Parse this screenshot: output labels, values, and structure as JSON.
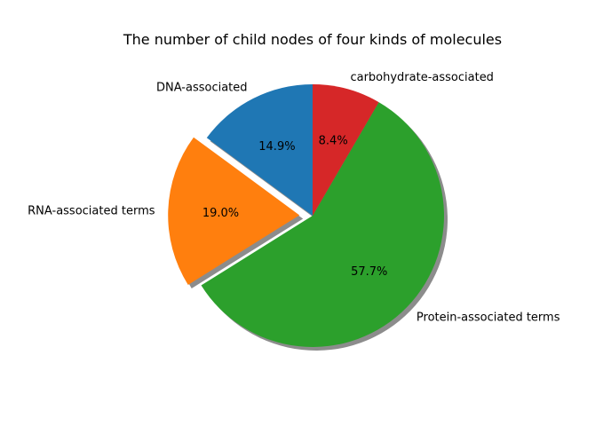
{
  "chart_data": {
    "type": "pie",
    "title": "The number of child nodes of four kinds of molecules",
    "slices": [
      {
        "label": "DNA-associated",
        "percent": 14.9,
        "percent_label": "14.9%",
        "color": "#1f77b4",
        "exploded": false
      },
      {
        "label": "RNA-associated terms",
        "percent": 19.0,
        "percent_label": "19.0%",
        "color": "#ff7f0e",
        "exploded": true
      },
      {
        "label": "Protein-associated terms",
        "percent": 57.7,
        "percent_label": "57.7%",
        "color": "#2ca02c",
        "exploded": false
      },
      {
        "label": "carbohydrate-associated",
        "percent": 8.4,
        "percent_label": "8.4%",
        "color": "#d62728",
        "exploded": false
      }
    ],
    "start_angle_deg": 90,
    "direction": "counterclockwise",
    "shadow": true
  }
}
